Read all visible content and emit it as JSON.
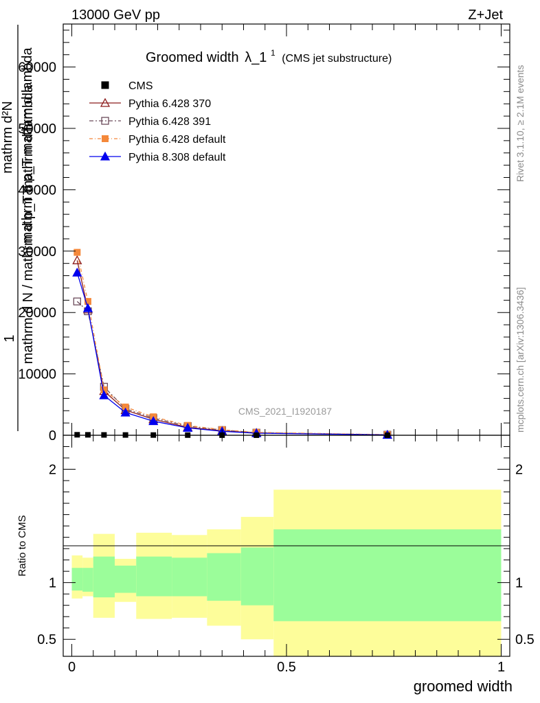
{
  "header": {
    "energy_label": "13000 GeV pp",
    "process_label": "Z+Jet",
    "title": "Groomed width",
    "title_symbol": "λ_1",
    "title_sup": "1",
    "title_paren": "(CMS jet substructure)",
    "watermark": "CMS_2021_I1920187",
    "rivet_label": "Rivet 3.1.10, ≥ 2.1M events",
    "source_label": "mcplots.cern.ch [arXiv:1306.3436]"
  },
  "chart_data": {
    "type": "line",
    "xlabel": "groomed width",
    "ylabel_lines": [
      "1",
      "mathrm d N / mathrm d p_T mathrm d lambda",
      "mathrm d²N",
      "mathrm d p_T mathrm d lambda"
    ],
    "ratio_ylabel": "Ratio to CMS",
    "xlim": [
      -0.02,
      1.02
    ],
    "main_ylim": [
      0,
      67000
    ],
    "main_yticks": [
      0,
      10000,
      20000,
      30000,
      40000,
      50000,
      60000
    ],
    "main_ytick_labels": [
      "0",
      "10000",
      "20000",
      "30000",
      "40000",
      "50000",
      "60000"
    ],
    "ratio_ylim": [
      0.35,
      2.3
    ],
    "ratio_yticks": [
      0.5,
      1,
      2
    ],
    "ratio_ytick_labels": [
      "0.5",
      "1",
      "2"
    ],
    "xticks": [
      0,
      0.5,
      1
    ],
    "xtick_labels": [
      "0",
      "0.5",
      "1"
    ],
    "bin_edges": [
      0.0,
      0.025,
      0.05,
      0.1,
      0.15,
      0.233,
      0.315,
      0.394,
      0.47,
      1.0
    ],
    "bin_centers": [
      0.0125,
      0.0375,
      0.075,
      0.125,
      0.19,
      0.27,
      0.35,
      0.43,
      0.735
    ],
    "legend": [
      "CMS",
      "Pythia 6.428 370",
      "Pythia 6.428 391",
      "Pythia 6.428 default",
      "Pythia 8.308 default"
    ],
    "series": [
      {
        "name": "CMS",
        "color": "#000000",
        "marker": "square-filled",
        "values": [
          80,
          70,
          55,
          45,
          35,
          25,
          15,
          8,
          3
        ]
      },
      {
        "name": "Pythia 6.428 370",
        "color": "#8b1a1a",
        "marker": "triangle-open",
        "dash": "solid",
        "values": [
          28500,
          20500,
          7200,
          4100,
          2600,
          1300,
          720,
          380,
          70
        ]
      },
      {
        "name": "Pythia 6.428 391",
        "color": "#6b4a5a",
        "marker": "square-open",
        "dash": "6,3,2,3",
        "values": [
          21800,
          20200,
          7900,
          4300,
          2800,
          1500,
          850,
          420,
          90
        ]
      },
      {
        "name": "Pythia 6.428 default",
        "color": "#f4883a",
        "marker": "square-filled",
        "dash": "5,3,1,3",
        "values": [
          29800,
          21800,
          7400,
          4600,
          3000,
          1600,
          900,
          470,
          100
        ]
      },
      {
        "name": "Pythia 8.308 default",
        "color": "#0000ee",
        "marker": "triangle-filled",
        "dash": "solid",
        "values": [
          26500,
          20700,
          6500,
          3700,
          2300,
          1200,
          640,
          330,
          60
        ]
      }
    ],
    "ratio_band_total": [
      [
        0.86,
        1.24
      ],
      [
        0.88,
        1.22
      ],
      [
        0.69,
        1.43
      ],
      [
        0.83,
        1.21
      ],
      [
        0.68,
        1.44
      ],
      [
        0.69,
        1.42
      ],
      [
        0.62,
        1.47
      ],
      [
        0.5,
        1.58
      ],
      [
        0.3,
        1.82
      ]
    ],
    "ratio_band_stat": [
      [
        0.93,
        1.13
      ],
      [
        0.92,
        1.13
      ],
      [
        0.87,
        1.23
      ],
      [
        0.91,
        1.15
      ],
      [
        0.88,
        1.23
      ],
      [
        0.88,
        1.22
      ],
      [
        0.84,
        1.26
      ],
      [
        0.8,
        1.31
      ],
      [
        0.66,
        1.47
      ]
    ],
    "colors": {
      "band_total": "#fdfd9a",
      "band_stat": "#9bfd9a"
    }
  }
}
